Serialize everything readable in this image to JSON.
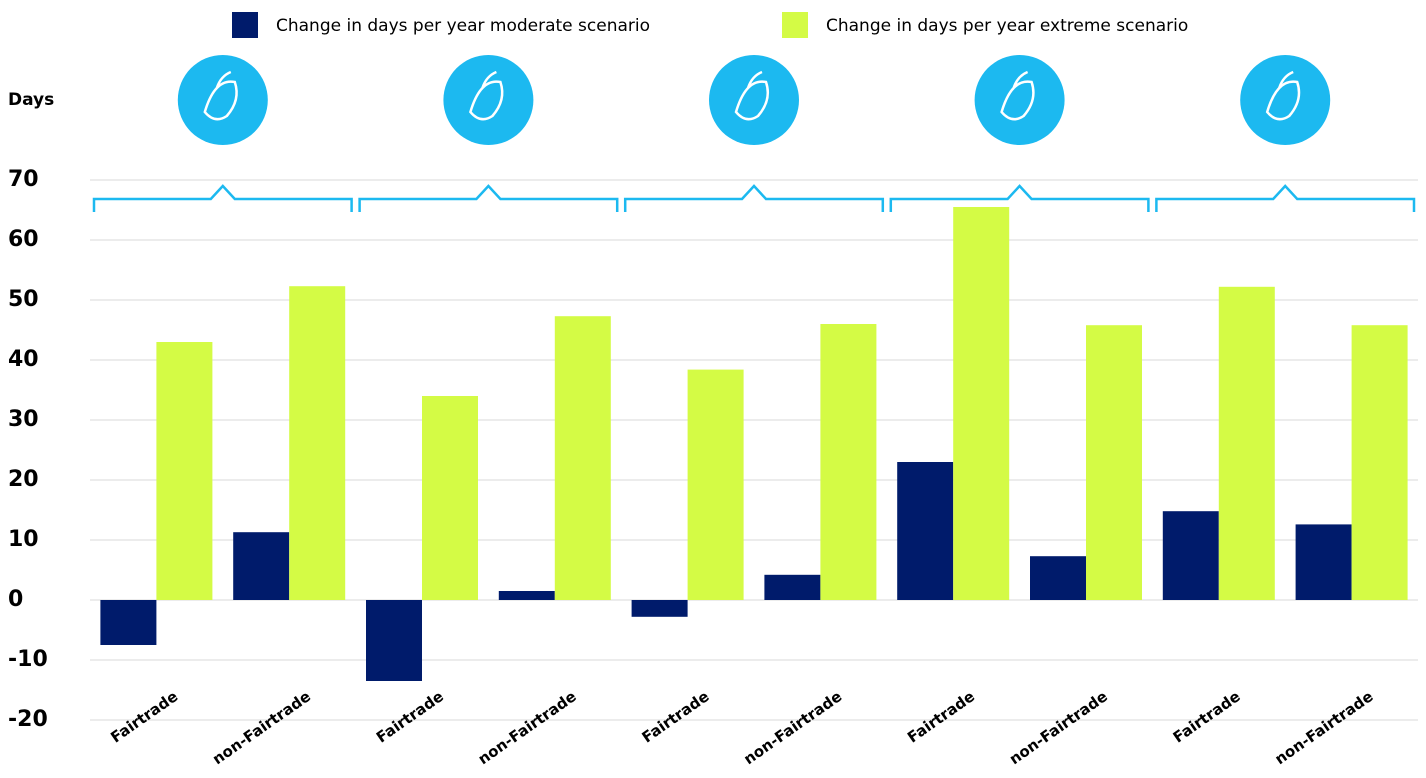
{
  "chart_data": {
    "type": "bar",
    "y_label": "Days",
    "categories": [
      "Fairtrade",
      "non-Fairtrade",
      "Fairtrade",
      "non-Fairtrade",
      "Fairtrade",
      "non-Fairtrade",
      "Fairtrade",
      "non-Fairtrade",
      "Fairtrade",
      "non-Fairtrade"
    ],
    "series": [
      {
        "name": "Change in days per year moderate scenario",
        "color": "#001b6b",
        "values": [
          -7.5,
          11.3,
          -13.5,
          1.5,
          -2.8,
          4.2,
          23,
          7.3,
          14.8,
          12.6
        ]
      },
      {
        "name": "Change in days per year extreme scenario",
        "color": "#d4fb45",
        "values": [
          43,
          52.3,
          34,
          47.3,
          38.4,
          46,
          65.5,
          45.8,
          52.2,
          45.8
        ]
      }
    ],
    "ylim": [
      -20,
      70
    ],
    "yticks": [
      -20,
      -10,
      0,
      10,
      20,
      30,
      40,
      50,
      60,
      70
    ],
    "grid": true
  }
}
